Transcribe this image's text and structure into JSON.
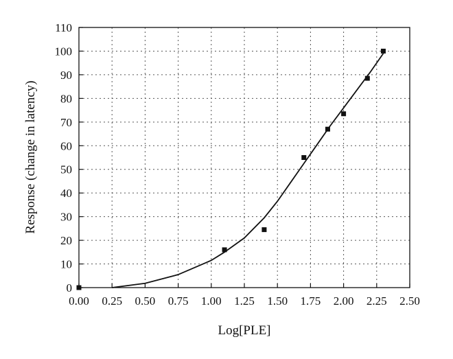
{
  "chart_data": {
    "type": "scatter",
    "title": "",
    "xlabel": "Log[PLE]",
    "ylabel": "Response (change in latency)",
    "xlim": [
      0,
      2.5
    ],
    "ylim": [
      0,
      110
    ],
    "xticks": [
      "0.00",
      "0.25",
      "0.50",
      "0.75",
      "1.00",
      "1.25",
      "1.50",
      "1.75",
      "2.00",
      "2.25",
      "2.50"
    ],
    "yticks": [
      "0",
      "10",
      "20",
      "30",
      "40",
      "50",
      "60",
      "70",
      "80",
      "90",
      "100",
      "110"
    ],
    "grid": true,
    "series": [
      {
        "marker": "square",
        "points": [
          {
            "x": 0.0,
            "y": 0.0
          },
          {
            "x": 1.1,
            "y": 16.0
          },
          {
            "x": 1.4,
            "y": 24.5
          },
          {
            "x": 1.7,
            "y": 55.0
          },
          {
            "x": 1.88,
            "y": 67.0
          },
          {
            "x": 2.0,
            "y": 73.5
          },
          {
            "x": 2.18,
            "y": 88.5
          },
          {
            "x": 2.3,
            "y": 100.0
          }
        ]
      },
      {
        "style": "line",
        "points": [
          {
            "x": 0.25,
            "y": 0.0
          },
          {
            "x": 0.5,
            "y": 1.8
          },
          {
            "x": 0.75,
            "y": 5.5
          },
          {
            "x": 1.0,
            "y": 11.5
          },
          {
            "x": 1.1,
            "y": 15.0
          },
          {
            "x": 1.25,
            "y": 21.0
          },
          {
            "x": 1.4,
            "y": 29.5
          },
          {
            "x": 1.5,
            "y": 36.5
          },
          {
            "x": 1.6,
            "y": 44.5
          },
          {
            "x": 1.7,
            "y": 52.5
          },
          {
            "x": 1.8,
            "y": 60.5
          },
          {
            "x": 1.9,
            "y": 68.5
          },
          {
            "x": 2.0,
            "y": 76.0
          },
          {
            "x": 2.1,
            "y": 83.5
          },
          {
            "x": 2.2,
            "y": 91.0
          },
          {
            "x": 2.3,
            "y": 99.0
          }
        ]
      }
    ]
  }
}
